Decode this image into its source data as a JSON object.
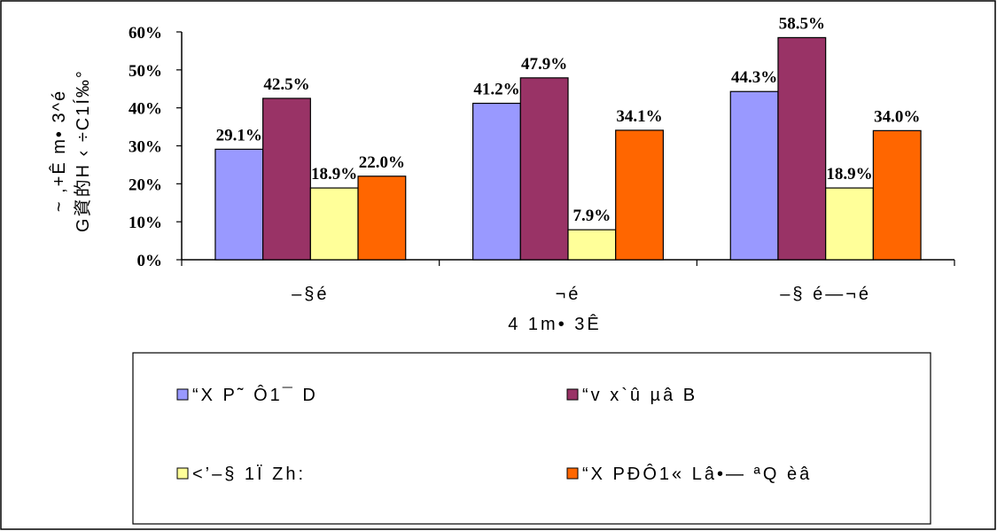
{
  "chart_data": {
    "type": "bar",
    "title": "",
    "xlabel": "4 1m• 3Ê",
    "ylabel_lines": [
      "~ ,+Ê m• 3^é",
      "G資的H ‹ ÷C1Í‰°"
    ],
    "categories": [
      "–§é",
      "¬é",
      "–§ é—¬é"
    ],
    "ylim": [
      0,
      60
    ],
    "yticks": [
      0,
      10,
      20,
      30,
      40,
      50,
      60
    ],
    "ytick_labels": [
      "0%",
      "10%",
      "20%",
      "30%",
      "40%",
      "50%",
      "60%"
    ],
    "grid": false,
    "legend_position": "bottom",
    "series": [
      {
        "name": "“X P˜ Ô1¯ D",
        "color": "#9999ff",
        "values": [
          29.1,
          41.2,
          44.3
        ],
        "labels": [
          "29.1%",
          "41.2%",
          "44.3%"
        ]
      },
      {
        "name": "“v x`û µâ B",
        "color": "#993366",
        "values": [
          42.5,
          47.9,
          58.5
        ],
        "labels": [
          "42.5%",
          "47.9%",
          "58.5%"
        ]
      },
      {
        "name": "<’–§ 1Ï Zh:",
        "color": "#ffff99",
        "values": [
          18.9,
          7.9,
          18.9
        ],
        "labels": [
          "18.9%",
          "7.9%",
          "18.9%"
        ]
      },
      {
        "name": "“X PÐÔ1« Lâ•— ªQ èâ",
        "color": "#ff6600",
        "values": [
          22.0,
          34.1,
          34.0
        ],
        "labels": [
          "22.0%",
          "34.1%",
          "34.0%"
        ]
      }
    ]
  }
}
